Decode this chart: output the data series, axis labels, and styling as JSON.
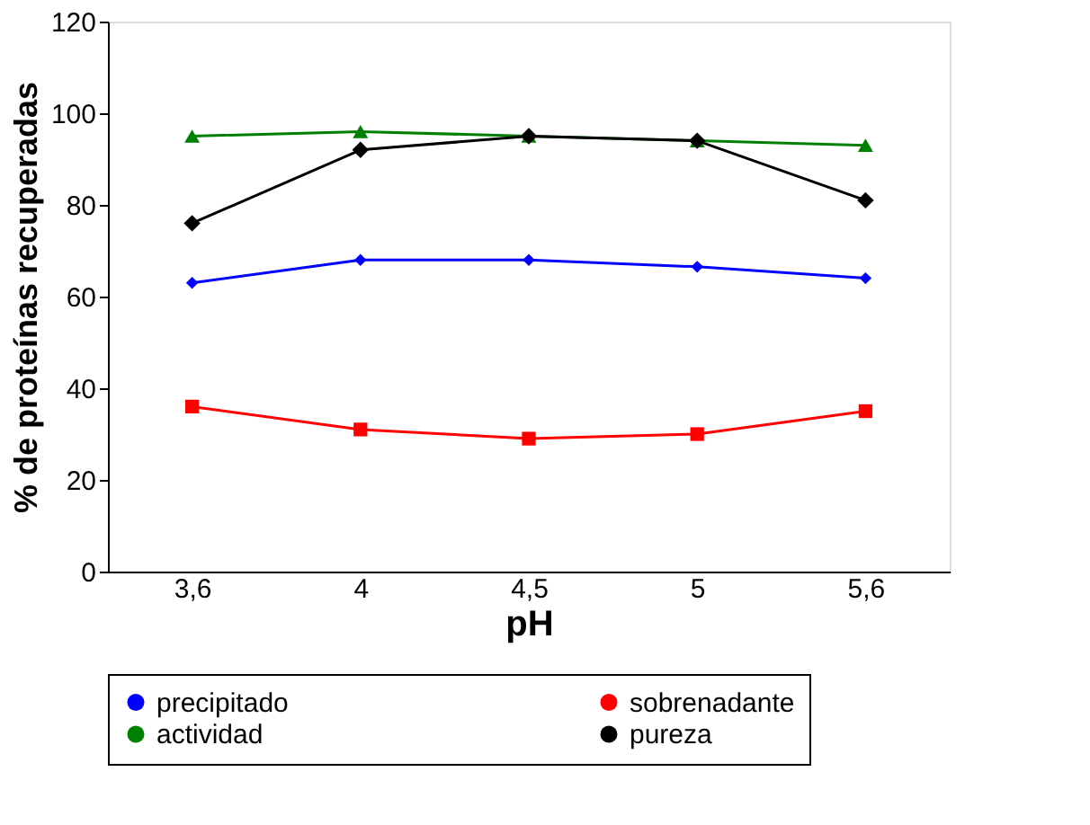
{
  "chart_data": {
    "type": "line",
    "xlabel": "pH",
    "ylabel": "% de proteínas recuperadas",
    "categories": [
      "3,6",
      "4",
      "4,5",
      "5",
      "5,6"
    ],
    "ylim": [
      0,
      120
    ],
    "yticks": [
      0,
      20,
      40,
      60,
      80,
      100,
      120
    ],
    "grid": false,
    "legend": "bottom",
    "series": [
      {
        "name": "precipitado",
        "color": "#0000ff",
        "marker": "diamond",
        "values": [
          63,
          68,
          68,
          66.5,
          64
        ]
      },
      {
        "name": "sobrenadante",
        "color": "#ff0000",
        "marker": "square",
        "values": [
          36,
          31,
          29,
          30,
          35
        ]
      },
      {
        "name": "actividad",
        "color": "#008000",
        "marker": "triangle",
        "values": [
          95,
          96,
          95,
          94,
          93
        ]
      },
      {
        "name": "pureza",
        "color": "#000000",
        "marker": "diamond",
        "values": [
          76,
          92,
          95,
          94,
          81
        ]
      }
    ]
  }
}
